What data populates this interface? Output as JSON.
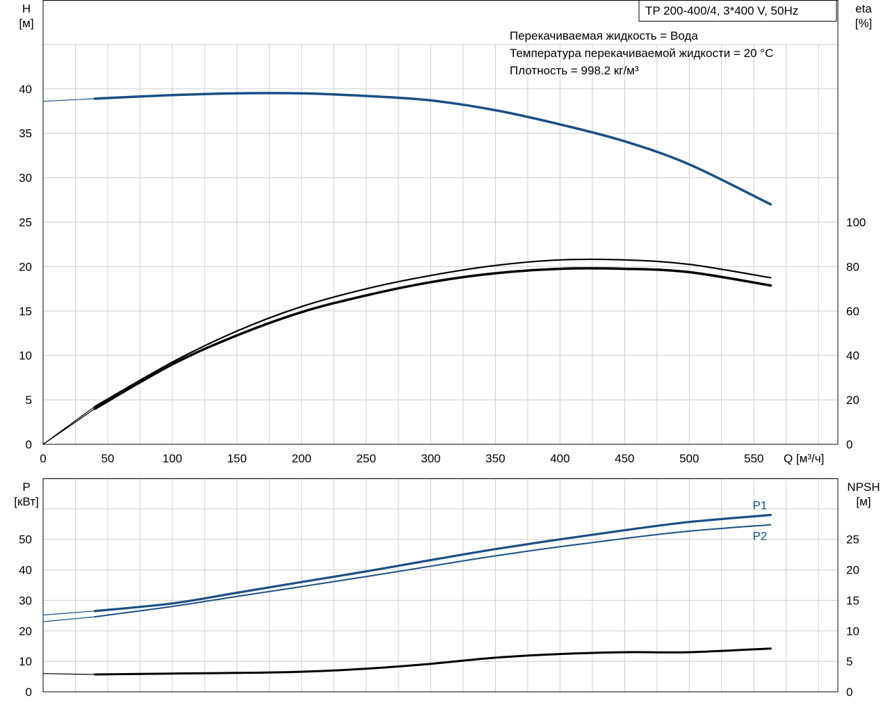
{
  "chart_data": [
    {
      "type": "line",
      "title_box": "TP 200-400/4, 3*400 V, 50Hz",
      "info_lines": [
        "Перекачиваемая жидкость = Вода",
        "Температура перекачиваемой жидкости = 20 °C",
        "Плотность = 998.2 кг/м³"
      ],
      "xlabel": "Q [м³/ч]",
      "ylabel_left": [
        "H",
        "[м]"
      ],
      "ylabel_right": [
        "eta",
        "[%]"
      ],
      "xlim": [
        0,
        615
      ],
      "ylim_left": [
        0,
        50
      ],
      "ylim_right": [
        0,
        200
      ],
      "x_ticks": [
        0,
        50,
        100,
        150,
        200,
        250,
        300,
        350,
        400,
        450,
        500,
        550
      ],
      "y_ticks_left": [
        0,
        5,
        10,
        15,
        20,
        25,
        30,
        35,
        40
      ],
      "y_ticks_right": [
        0,
        20,
        40,
        60,
        80,
        100
      ],
      "grid": true,
      "colors": {
        "head": "#1b4f84",
        "eta": "#000000"
      },
      "series": [
        {
          "axis": "left",
          "color": "#1b4f84",
          "width": 3.5,
          "x": [
            0,
            40,
            100,
            150,
            200,
            250,
            300,
            350,
            400,
            450,
            500,
            563
          ],
          "y": [
            38.6,
            38.9,
            39.3,
            39.5,
            39.5,
            39.2,
            38.7,
            37.6,
            36.0,
            34.1,
            31.5,
            27.0
          ]
        },
        {
          "axis": "right",
          "color": "#000000",
          "width": 2.2,
          "x": [
            0,
            40,
            100,
            150,
            200,
            250,
            300,
            350,
            400,
            450,
            500,
            563
          ],
          "y": [
            0,
            17,
            37,
            51,
            62,
            70,
            76,
            80.5,
            83,
            83,
            81,
            75
          ]
        },
        {
          "axis": "right",
          "color": "#000000",
          "width": 3.5,
          "x": [
            0,
            40,
            100,
            150,
            200,
            250,
            300,
            350,
            400,
            450,
            500,
            563
          ],
          "y": [
            0,
            16,
            36,
            49,
            59.5,
            67,
            73,
            77,
            79,
            79,
            77.5,
            71.5
          ]
        }
      ]
    },
    {
      "type": "line",
      "ylabel_left": [
        "P",
        "[кВт]"
      ],
      "ylabel_right": [
        "NPSH",
        "[м]"
      ],
      "xlim": [
        0,
        615
      ],
      "ylim_left": [
        0,
        70
      ],
      "ylim_right": [
        0,
        35
      ],
      "x_ticks": [
        0,
        50,
        100,
        150,
        200,
        250,
        300,
        350,
        400,
        450,
        500,
        550
      ],
      "y_ticks_left": [
        0,
        10,
        20,
        30,
        40,
        50
      ],
      "y_ticks_right": [
        0,
        5,
        10,
        15,
        20,
        25
      ],
      "grid": true,
      "colors": {
        "power": "#1b4f84",
        "npsh": "#000000"
      },
      "series": [
        {
          "name": "P1",
          "axis": "left",
          "color": "#1b4f84",
          "width": 3.2,
          "x": [
            0,
            40,
            100,
            150,
            200,
            250,
            300,
            350,
            400,
            450,
            500,
            563
          ],
          "y": [
            25.2,
            26.5,
            29.0,
            32.5,
            36.0,
            39.5,
            43.2,
            46.8,
            50.0,
            53.0,
            55.7,
            58.0
          ]
        },
        {
          "name": "P2",
          "axis": "left",
          "color": "#1b4f84",
          "width": 2.0,
          "x": [
            0,
            40,
            100,
            150,
            200,
            250,
            300,
            350,
            400,
            450,
            500,
            563
          ],
          "y": [
            23.0,
            24.6,
            28.0,
            31.3,
            34.5,
            37.8,
            41.2,
            44.6,
            47.6,
            50.3,
            52.7,
            54.8
          ]
        },
        {
          "axis": "right",
          "color": "#000000",
          "width": 3.0,
          "x": [
            0,
            40,
            100,
            150,
            200,
            250,
            300,
            350,
            400,
            450,
            500,
            563
          ],
          "y": [
            3.0,
            2.85,
            3.0,
            3.1,
            3.3,
            3.8,
            4.6,
            5.6,
            6.2,
            6.5,
            6.5,
            7.1
          ]
        }
      ]
    }
  ]
}
